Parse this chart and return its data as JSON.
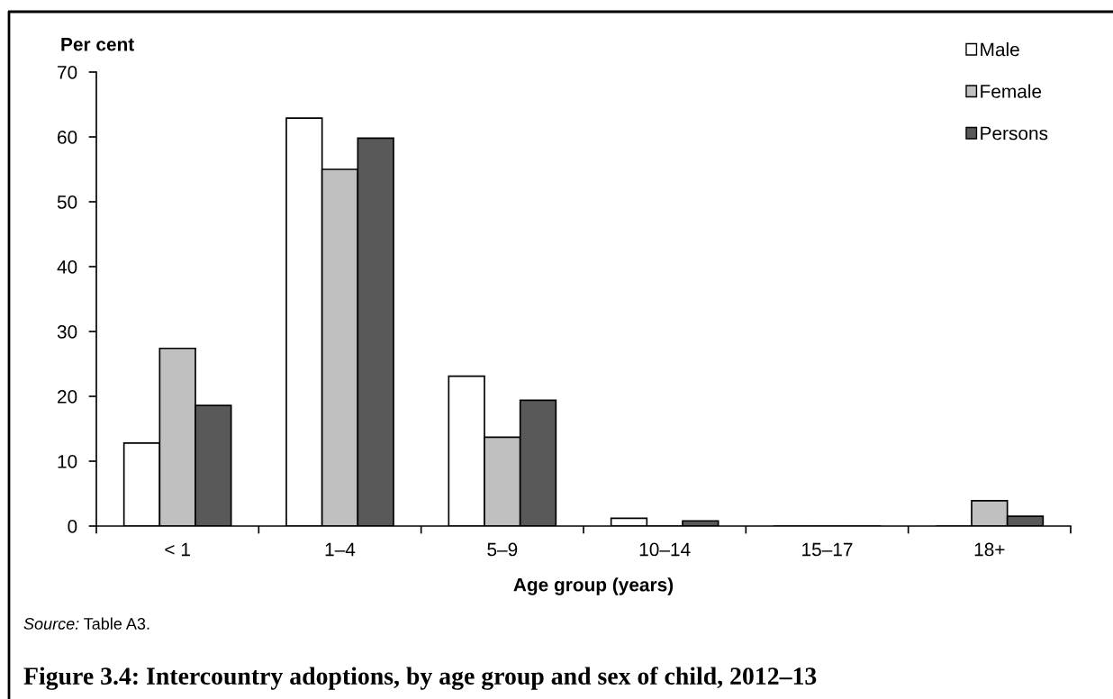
{
  "chart_data": {
    "type": "bar",
    "title": "Figure 3.4: Intercountry adoptions, by age group and sex of child, 2012–13",
    "xlabel": "Age group (years)",
    "ylabel": "Per cent",
    "categories": [
      "< 1",
      "1–4",
      "5–9",
      "10–14",
      "15–17",
      "18+"
    ],
    "series": [
      {
        "name": "Male",
        "color": "#ffffff",
        "values": [
          12.8,
          62.9,
          23.1,
          1.2,
          0,
          0
        ]
      },
      {
        "name": "Female",
        "color": "#c0c0c0",
        "values": [
          27.4,
          55.0,
          13.7,
          0,
          0,
          3.9
        ]
      },
      {
        "name": "Persons",
        "color": "#595959",
        "values": [
          18.6,
          59.8,
          19.4,
          0.8,
          0,
          1.5
        ]
      }
    ],
    "ylim": [
      0,
      70
    ],
    "yticks": [
      0,
      10,
      20,
      30,
      40,
      50,
      60,
      70
    ],
    "legend": "top right",
    "grid": false,
    "annotations": [
      "Source: Table A3."
    ]
  }
}
